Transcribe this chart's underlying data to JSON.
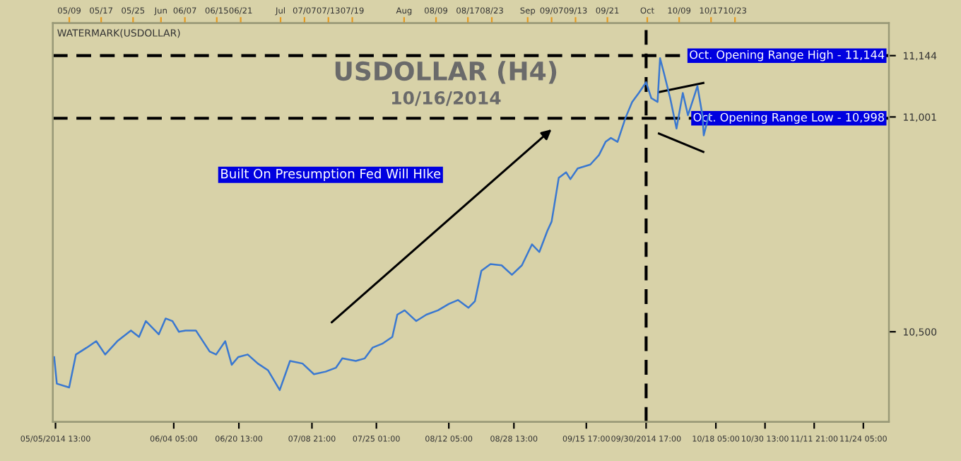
{
  "chart_data": {
    "type": "line",
    "title": "USDOLLAR (H4)",
    "subtitle": "10/16/2014",
    "annotations": [
      "WATERMARK(USDOLLAR)",
      "Built On Presumption Fed Will HIke"
    ],
    "x": [
      "2014-05-05T05:00",
      "2014-05-05T21:00",
      "2014-05-08T23:00",
      "2014-05-10T16:00",
      "2014-05-13T09:00",
      "2014-05-15T18:00",
      "2014-05-18T00:00",
      "2014-05-21T01:00",
      "2014-05-24T11:00",
      "2014-05-26T12:00",
      "2014-05-28T05:00",
      "2014-05-31T11:00",
      "2014-06-02T04:00",
      "2014-06-03T21:00",
      "2014-06-05T12:00",
      "2014-06-07T04:00",
      "2014-06-09T18:00",
      "2014-06-13T05:00",
      "2014-06-14T20:00",
      "2014-06-17T03:00",
      "2014-06-18T18:00",
      "2014-06-20T09:00",
      "2014-06-22T18:00",
      "2014-06-25T07:00",
      "2014-06-27T21:00",
      "2014-06-30T19:00",
      "2014-07-03T09:00",
      "2014-07-06T12:00",
      "2014-07-09T09:00",
      "2014-07-12T07:00",
      "2014-07-14T21:00",
      "2014-07-16T12:00",
      "2014-07-19T21:00",
      "2014-07-22T03:00",
      "2014-07-24T02:00",
      "2014-07-26T12:00",
      "2014-07-29T01:00",
      "2014-07-30T07:00",
      "2014-08-01T03:00",
      "2014-08-04T01:00",
      "2014-08-06T14:00",
      "2014-08-09T12:00",
      "2014-08-12T05:00",
      "2014-08-14T12:00",
      "2014-08-17T03:00",
      "2014-08-18T18:00",
      "2014-08-20T09:00",
      "2014-08-22T16:00",
      "2014-08-25T11:00",
      "2014-08-28T01:00",
      "2014-08-30T13:00",
      "2014-09-02T02:00",
      "2014-09-03T22:00",
      "2014-09-05T22:00",
      "2014-09-07T00:00",
      "2014-09-07T17:00",
      "2014-09-08T19:00",
      "2014-09-10T15:00",
      "2014-09-11T17:00",
      "2014-09-13T13:00",
      "2014-09-16T17:00",
      "2014-09-18T21:00",
      "2014-09-20T13:00",
      "2014-09-21T21:00",
      "2014-09-23T13:00",
      "2014-09-25T13:00",
      "2014-09-27T05:00",
      "2014-09-28T21:00",
      "2014-09-30T17:00",
      "2014-10-02T00:00",
      "2014-10-03T14:00",
      "2014-10-04T05:00",
      "2014-10-05T04:00",
      "2014-10-06T18:00",
      "2014-10-08T08:00",
      "2014-10-09T22:00",
      "2014-10-11T05:00",
      "2014-10-12T15:00",
      "2014-10-13T14:00",
      "2014-10-14T20:00",
      "2014-10-15T04:00",
      "2014-10-16T11:00"
    ],
    "series": [
      {
        "color": "#3a78d0",
        "values": [
          10441,
          10379,
          10370,
          10447,
          10463,
          10478,
          10447,
          10478,
          10503,
          10488,
          10525,
          10494,
          10531,
          10525,
          10500,
          10503,
          10503,
          10454,
          10447,
          10478,
          10423,
          10441,
          10447,
          10426,
          10410,
          10364,
          10432,
          10426,
          10401,
          10407,
          10416,
          10438,
          10432,
          10438,
          10463,
          10472,
          10488,
          10540,
          10550,
          10525,
          10540,
          10550,
          10565,
          10574,
          10556,
          10571,
          10642,
          10658,
          10655,
          10633,
          10655,
          10704,
          10686,
          10735,
          10757,
          10797,
          10859,
          10872,
          10856,
          10881,
          10890,
          10912,
          10943,
          10952,
          10943,
          10999,
          11036,
          11057,
          11082,
          11045,
          11036,
          11138,
          11104,
          11045,
          10974,
          11057,
          11005,
          11045,
          11073,
          11005,
          10958,
          11005
        ]
      }
    ],
    "xlim": [
      "2014-05-04T21:00",
      "2014-11-30T15:00"
    ],
    "xticks": [
      {
        "value": "2014-05-05T13:00",
        "label": "05/05/2014 13:00"
      },
      {
        "value": "2014-06-04T05:00",
        "label": "06/04 05:00"
      },
      {
        "value": "2014-06-20T13:00",
        "label": "06/20 13:00"
      },
      {
        "value": "2014-07-08T21:00",
        "label": "07/08 21:00"
      },
      {
        "value": "2014-07-25T01:00",
        "label": "07/25 01:00"
      },
      {
        "value": "2014-08-12T05:00",
        "label": "08/12 05:00"
      },
      {
        "value": "2014-08-28T13:00",
        "label": "08/28 13:00"
      },
      {
        "value": "2014-09-15T17:00",
        "label": "09/15 17:00"
      },
      {
        "value": "2014-09-30T17:00",
        "label": "09/30/2014 17:00"
      },
      {
        "value": "2014-10-18T05:00",
        "label": "10/18 05:00"
      },
      {
        "value": "2014-10-30T13:00",
        "label": "10/30 13:00"
      },
      {
        "value": "2014-11-11T21:00",
        "label": "11/11 21:00"
      },
      {
        "value": "2014-11-24T05:00",
        "label": "11/24 05:00"
      }
    ],
    "x2lim": [
      "2014-05-04T21:00",
      "2014-11-30T15:00"
    ],
    "x2ticks": [
      {
        "value": "2014-05-09",
        "label": "05/09"
      },
      {
        "value": "2014-05-17",
        "label": "05/17"
      },
      {
        "value": "2014-05-25",
        "label": "05/25"
      },
      {
        "value": "2014-06-01",
        "label": "Jun"
      },
      {
        "value": "2014-06-07",
        "label": "06/07"
      },
      {
        "value": "2014-06-15",
        "label": "06/15"
      },
      {
        "value": "2014-06-21",
        "label": "06/21"
      },
      {
        "value": "2014-07-01",
        "label": "Jul"
      },
      {
        "value": "2014-07-07",
        "label": "07/07"
      },
      {
        "value": "2014-07-13",
        "label": "07/13"
      },
      {
        "value": "2014-07-19",
        "label": "07/19"
      },
      {
        "value": "2014-08-01",
        "label": "Aug"
      },
      {
        "value": "2014-08-09",
        "label": "08/09"
      },
      {
        "value": "2014-08-17",
        "label": "08/17"
      },
      {
        "value": "2014-08-23",
        "label": "08/23"
      },
      {
        "value": "2014-09-01",
        "label": "Sep"
      },
      {
        "value": "2014-09-07",
        "label": "09/07"
      },
      {
        "value": "2014-09-13",
        "label": "09/13"
      },
      {
        "value": "2014-09-21",
        "label": "09/21"
      },
      {
        "value": "2014-10-01",
        "label": "Oct"
      },
      {
        "value": "2014-10-09",
        "label": "10/09"
      },
      {
        "value": "2014-10-17",
        "label": "10/17"
      },
      {
        "value": "2014-10-23",
        "label": "10/23"
      }
    ],
    "ylim": [
      10290,
      11220
    ],
    "yticks": [
      {
        "value": 10500,
        "label": "10,500"
      },
      {
        "value": 11001,
        "label": "11,001"
      },
      {
        "value": 11144,
        "label": "11,144"
      }
    ],
    "ref_lines": [
      {
        "axis": "y",
        "value": 11144,
        "label": "Oct. Opening Range High - 11,144",
        "color": "#000000",
        "line_style": "dashed"
      },
      {
        "axis": "y",
        "value": 10998,
        "label": "Oct. Opening Range Low - 10,998",
        "color": "#000000",
        "line_style": "dashed"
      },
      {
        "axis": "x",
        "value": "2014-09-30T17:00",
        "color": "#000000",
        "line_style": "dashed"
      }
    ],
    "grid": false,
    "legend": false
  }
}
